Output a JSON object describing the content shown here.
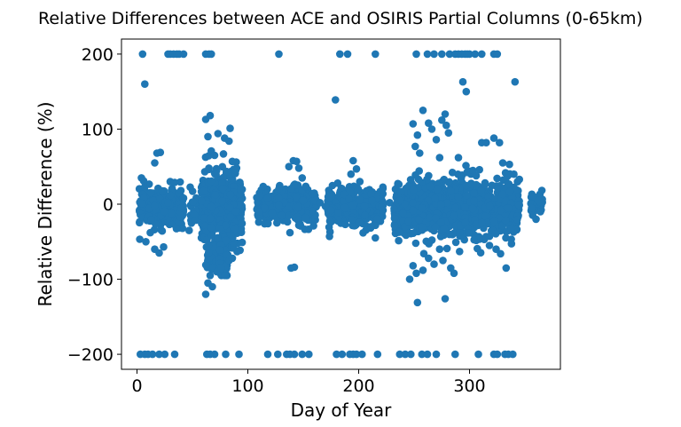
{
  "chart_data": {
    "type": "scatter",
    "title": "Relative Differences between ACE and OSIRIS Partial Columns (0-65km)",
    "xlabel": "Day of Year",
    "ylabel": "Relative Difference (%)",
    "xlim": [
      -14,
      382
    ],
    "ylim": [
      -220,
      220
    ],
    "xticks": [
      0,
      100,
      200,
      300
    ],
    "yticks": [
      -200,
      -100,
      0,
      100,
      200
    ],
    "grid": false,
    "marker_color": "#1f77b4",
    "points": [
      [
        5,
        200
      ],
      [
        28,
        200
      ],
      [
        30,
        200
      ],
      [
        33,
        200
      ],
      [
        36,
        200
      ],
      [
        38,
        200
      ],
      [
        42,
        200
      ],
      [
        62,
        200
      ],
      [
        65,
        200
      ],
      [
        67,
        200
      ],
      [
        128,
        200
      ],
      [
        183,
        200
      ],
      [
        190,
        200
      ],
      [
        215,
        200
      ],
      [
        252,
        200
      ],
      [
        262,
        200
      ],
      [
        268,
        200
      ],
      [
        275,
        200
      ],
      [
        282,
        200
      ],
      [
        287,
        200
      ],
      [
        290,
        200
      ],
      [
        293,
        200
      ],
      [
        296,
        200
      ],
      [
        298,
        200
      ],
      [
        300,
        200
      ],
      [
        305,
        200
      ],
      [
        311,
        200
      ],
      [
        322,
        200
      ],
      [
        325,
        200
      ],
      [
        7,
        160
      ],
      [
        18,
        68
      ],
      [
        21,
        69
      ],
      [
        16,
        55
      ],
      [
        30,
        30
      ],
      [
        34,
        29
      ],
      [
        4,
        35
      ],
      [
        6,
        31
      ],
      [
        179,
        139
      ],
      [
        181,
        28
      ],
      [
        195,
        58
      ],
      [
        193,
        40
      ],
      [
        198,
        47
      ],
      [
        201,
        30
      ],
      [
        249,
        107
      ],
      [
        251,
        77
      ],
      [
        253,
        92
      ],
      [
        255,
        68
      ],
      [
        258,
        125
      ],
      [
        263,
        108
      ],
      [
        266,
        100
      ],
      [
        270,
        86
      ],
      [
        273,
        62
      ],
      [
        275,
        112
      ],
      [
        278,
        120
      ],
      [
        279,
        105
      ],
      [
        281,
        95
      ],
      [
        290,
        62
      ],
      [
        294,
        163
      ],
      [
        297,
        150
      ],
      [
        303,
        45
      ],
      [
        306,
        26
      ],
      [
        311,
        82
      ],
      [
        315,
        82
      ],
      [
        322,
        88
      ],
      [
        327,
        82
      ],
      [
        330,
        55
      ],
      [
        336,
        53
      ],
      [
        340,
        40
      ],
      [
        341,
        163
      ],
      [
        62,
        113
      ],
      [
        64,
        90
      ],
      [
        66,
        118
      ],
      [
        67,
        71
      ],
      [
        70,
        65
      ],
      [
        73,
        94
      ],
      [
        78,
        67
      ],
      [
        79,
        88
      ],
      [
        83,
        84
      ],
      [
        84,
        101
      ],
      [
        86,
        57
      ],
      [
        89,
        45
      ],
      [
        141,
        58
      ],
      [
        144,
        57
      ],
      [
        146,
        48
      ],
      [
        137,
        50
      ],
      [
        149,
        35
      ],
      [
        3,
        -200
      ],
      [
        7,
        -200
      ],
      [
        10,
        -200
      ],
      [
        14,
        -200
      ],
      [
        20,
        -200
      ],
      [
        25,
        -200
      ],
      [
        34,
        -200
      ],
      [
        63,
        -200
      ],
      [
        66,
        -200
      ],
      [
        70,
        -200
      ],
      [
        80,
        -200
      ],
      [
        92,
        -200
      ],
      [
        118,
        -200
      ],
      [
        127,
        -200
      ],
      [
        135,
        -200
      ],
      [
        138,
        -200
      ],
      [
        142,
        -200
      ],
      [
        149,
        -200
      ],
      [
        155,
        -200
      ],
      [
        180,
        -200
      ],
      [
        185,
        -200
      ],
      [
        192,
        -200
      ],
      [
        195,
        -200
      ],
      [
        198,
        -200
      ],
      [
        203,
        -200
      ],
      [
        217,
        -200
      ],
      [
        237,
        -200
      ],
      [
        242,
        -200
      ],
      [
        247,
        -200
      ],
      [
        257,
        -200
      ],
      [
        262,
        -200
      ],
      [
        270,
        -200
      ],
      [
        287,
        -200
      ],
      [
        308,
        -200
      ],
      [
        322,
        -200
      ],
      [
        325,
        -200
      ],
      [
        332,
        -200
      ],
      [
        335,
        -200
      ],
      [
        339,
        -200
      ],
      [
        8,
        -50
      ],
      [
        12,
        -38
      ],
      [
        16,
        -60
      ],
      [
        20,
        -65
      ],
      [
        24,
        -57
      ],
      [
        47,
        -35
      ],
      [
        62,
        -120
      ],
      [
        64,
        -105
      ],
      [
        66,
        -95
      ],
      [
        68,
        -110
      ],
      [
        72,
        -90
      ],
      [
        76,
        -85
      ],
      [
        79,
        -95
      ],
      [
        83,
        -75
      ],
      [
        86,
        -72
      ],
      [
        139,
        -85
      ],
      [
        142,
        -84
      ],
      [
        138,
        -38
      ],
      [
        146,
        -28
      ],
      [
        211,
        -30
      ],
      [
        215,
        -45
      ],
      [
        246,
        -100
      ],
      [
        249,
        -82
      ],
      [
        252,
        -92
      ],
      [
        253,
        -131
      ],
      [
        258,
        -88
      ],
      [
        263,
        -72
      ],
      [
        268,
        -80
      ],
      [
        273,
        -60
      ],
      [
        276,
        -75
      ],
      [
        278,
        -126
      ],
      [
        283,
        -85
      ],
      [
        286,
        -92
      ],
      [
        291,
        -63
      ],
      [
        318,
        -55
      ],
      [
        324,
        -60
      ],
      [
        328,
        -66
      ],
      [
        333,
        -85
      ],
      [
        311,
        -25
      ],
      [
        245,
        -23
      ],
      [
        360,
        -20
      ],
      [
        358,
        10
      ],
      [
        362,
        5
      ],
      [
        356,
        -5
      ],
      [
        364,
        -10
      ],
      [
        30,
        12
      ],
      [
        40,
        -5
      ],
      [
        42,
        8
      ],
      [
        110,
        -10
      ],
      [
        115,
        -5
      ],
      [
        118,
        8
      ],
      [
        122,
        -12
      ],
      [
        128,
        20
      ],
      [
        150,
        5
      ],
      [
        152,
        -18
      ],
      [
        165,
        2
      ],
      [
        170,
        -3
      ],
      [
        175,
        -8
      ],
      [
        212,
        5
      ],
      [
        222,
        -8
      ],
      [
        228,
        2
      ],
      [
        232,
        -6
      ],
      [
        237,
        5
      ],
      [
        240,
        -12
      ]
    ],
    "clusters": [
      {
        "x_range": [
          2,
          42
        ],
        "y_mean": -5,
        "y_sd": 12,
        "count": 260
      },
      {
        "x_range": [
          48,
          56
        ],
        "y_mean": -10,
        "y_sd": 12,
        "count": 25
      },
      {
        "x_range": [
          58,
          95
        ],
        "y_mean": -5,
        "y_sd": 22,
        "count": 520
      },
      {
        "x_range": [
          62,
          82
        ],
        "y_mean": -68,
        "y_sd": 14,
        "count": 130
      },
      {
        "x_range": [
          108,
          162
        ],
        "y_mean": -2,
        "y_sd": 12,
        "count": 320
      },
      {
        "x_range": [
          172,
          222
        ],
        "y_mean": -3,
        "y_sd": 12,
        "count": 350
      },
      {
        "x_range": [
          232,
          345
        ],
        "y_mean": -5,
        "y_sd": 18,
        "count": 1100
      },
      {
        "x_range": [
          355,
          366
        ],
        "y_mean": 0,
        "y_sd": 7,
        "count": 35
      }
    ]
  }
}
